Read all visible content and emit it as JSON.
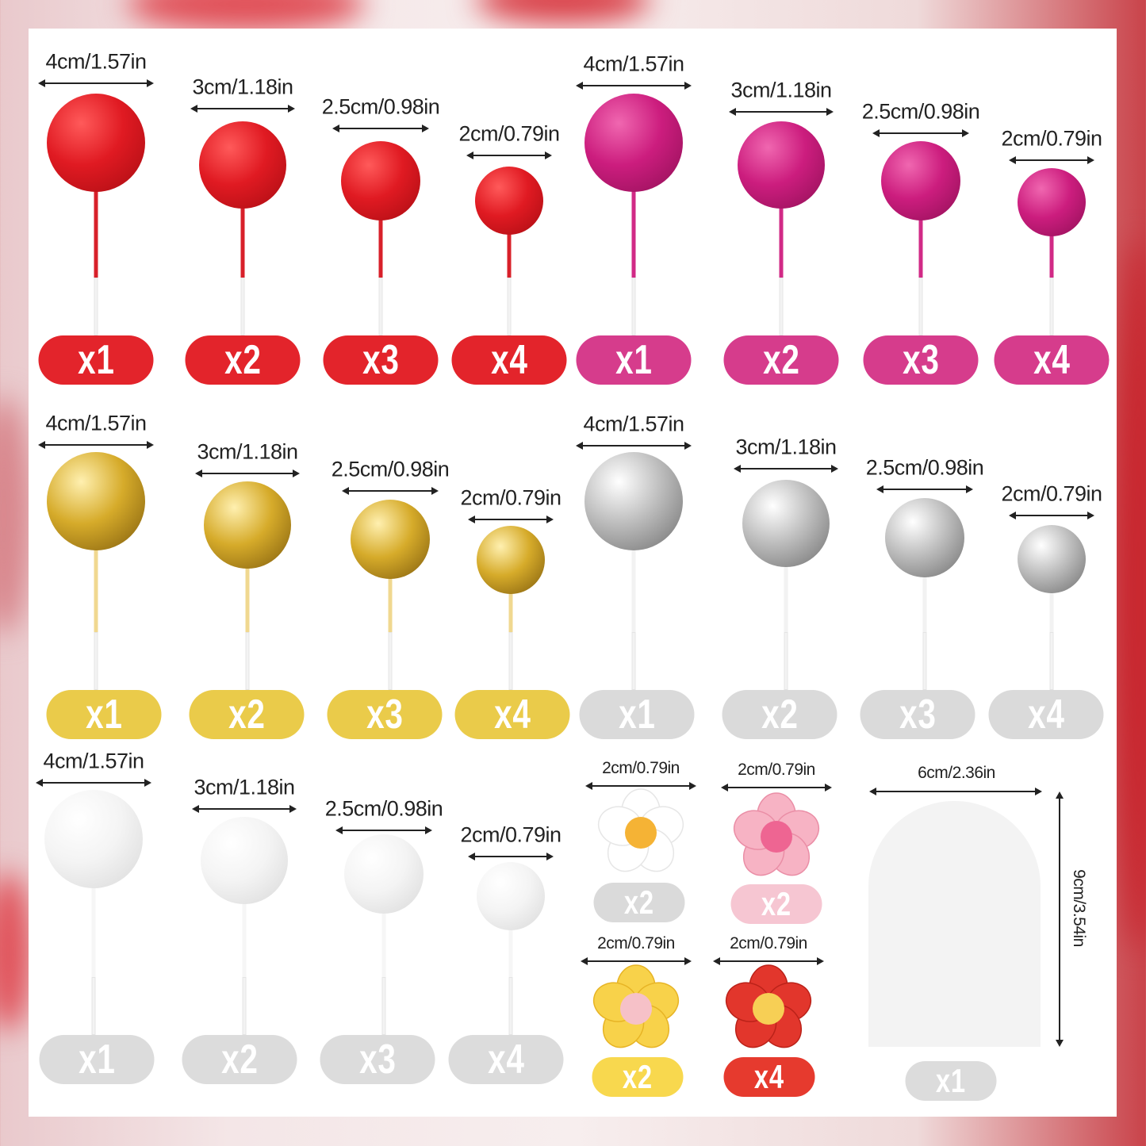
{
  "groups": [
    {
      "name": "red",
      "ball": [
        "#ff5a5a",
        "#e01a22",
        "#a80c12"
      ],
      "stick": "#d8202a",
      "badge": "#e3242b",
      "items": [
        {
          "size": "4cm/1.57in",
          "count": "x1"
        },
        {
          "size": "3cm/1.18in",
          "count": "x2"
        },
        {
          "size": "2.5cm/0.98in",
          "count": "x3"
        },
        {
          "size": "2cm/0.79in",
          "count": "x4"
        }
      ]
    },
    {
      "name": "pink",
      "ball": [
        "#f067b0",
        "#cc1d7e",
        "#8f0f55"
      ],
      "stick": "#d12a86",
      "badge": "#d63c8c",
      "items": [
        {
          "size": "4cm/1.57in",
          "count": "x1"
        },
        {
          "size": "3cm/1.18in",
          "count": "x2"
        },
        {
          "size": "2.5cm/0.98in",
          "count": "x3"
        },
        {
          "size": "2cm/0.79in",
          "count": "x4"
        }
      ]
    },
    {
      "name": "gold",
      "ball": [
        "#fff0b0",
        "#d6ab2a",
        "#7d5a0c"
      ],
      "stick": "#f0d890",
      "badge": "#eacb4a",
      "items": [
        {
          "size": "4cm/1.57in",
          "count": "x1"
        },
        {
          "size": "3cm/1.18in",
          "count": "x2"
        },
        {
          "size": "2.5cm/0.98in",
          "count": "x3"
        },
        {
          "size": "2cm/0.79in",
          "count": "x4"
        }
      ]
    },
    {
      "name": "silver",
      "ball": [
        "#ffffff",
        "#bdbdbd",
        "#6e6e6e"
      ],
      "stick": "#f2f2f2",
      "badge": "#dadada",
      "items": [
        {
          "size": "4cm/1.57in",
          "count": "x1"
        },
        {
          "size": "3cm/1.18in",
          "count": "x2"
        },
        {
          "size": "2.5cm/0.98in",
          "count": "x3"
        },
        {
          "size": "2cm/0.79in",
          "count": "x4"
        }
      ]
    },
    {
      "name": "white",
      "ball": [
        "#ffffff",
        "#f4f4f4",
        "#d8d8d8"
      ],
      "stick": "#f6f6f6",
      "badge": "#dcdcdc",
      "items": [
        {
          "size": "4cm/1.57in",
          "count": "x1"
        },
        {
          "size": "3cm/1.18in",
          "count": "x2"
        },
        {
          "size": "2.5cm/0.98in",
          "count": "x3"
        },
        {
          "size": "2cm/0.79in",
          "count": "x4"
        }
      ]
    }
  ],
  "flowers": [
    {
      "name": "white",
      "size": "2cm/0.79in",
      "count": "x2",
      "petal": "#ffffff",
      "edge": "#e6e6e6",
      "center": "#f5b335",
      "badge": "#dadada"
    },
    {
      "name": "pink",
      "size": "2cm/0.79in",
      "count": "x2",
      "petal": "#f7b3c4",
      "edge": "#ea8ea6",
      "center": "#ee6592",
      "badge": "#f6c6d2"
    },
    {
      "name": "yellow",
      "size": "2cm/0.79in",
      "count": "x2",
      "petal": "#f8d24a",
      "edge": "#e7b425",
      "center": "#f6c1c8",
      "badge": "#f8d84e"
    },
    {
      "name": "red",
      "size": "2cm/0.79in",
      "count": "x4",
      "petal": "#e2362c",
      "edge": "#bb2219",
      "center": "#f7cf55",
      "badge": "#e63a2e"
    }
  ],
  "arch": {
    "width_label": "6cm/2.36in",
    "height_label": "9cm/3.54in",
    "count": "x1",
    "badge": "#dcdcdc"
  }
}
